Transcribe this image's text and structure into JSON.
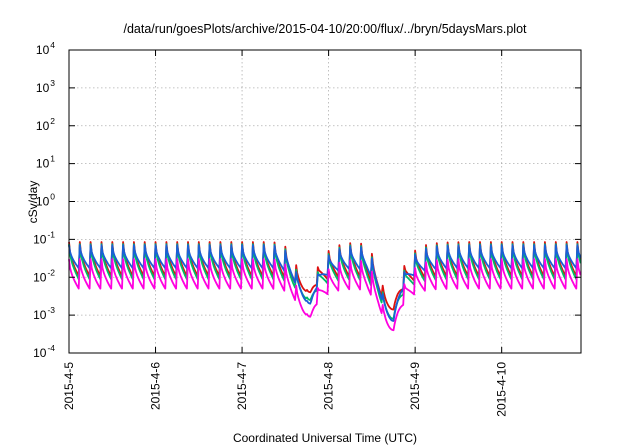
{
  "chart_data": {
    "type": "line",
    "title": "/data/run/goesPlots/archive/2015-04-10/20:00/flux/../bryn/5daysMars.plot",
    "xlabel": "Coordinated Universal Time (UTC)",
    "ylabel": "cSv/day",
    "yscale": "log",
    "ylim": [
      0.0001,
      10000
    ],
    "y_ticks": [
      {
        "exp": "-4"
      },
      {
        "exp": "-3"
      },
      {
        "exp": "-2"
      },
      {
        "exp": "-1"
      },
      {
        "exp": "0"
      },
      {
        "exp": "1"
      },
      {
        "exp": "2"
      },
      {
        "exp": "3"
      },
      {
        "exp": "4"
      }
    ],
    "y_tick_base": "10",
    "xlim": [
      "2015-04-05 00:00",
      "2015-04-10 22:00"
    ],
    "x_ticks": [
      "2015-4-5",
      "2015-4-6",
      "2015-4-7",
      "2015-4-8",
      "2015-4-9",
      "2015-4-10"
    ],
    "grid": true,
    "legend": "none",
    "sawtooth_period_hours": 3,
    "series": [
      {
        "color": "#dd1010",
        "peak": 0.085,
        "trough": 0.0095
      },
      {
        "color": "#00bb66",
        "peak": 0.075,
        "trough": 0.0078
      },
      {
        "color": "#1a5fd6",
        "peak": 0.07,
        "trough": 0.016
      },
      {
        "color": "#ff00e0",
        "peak": 0.03,
        "trough": 0.0045
      }
    ],
    "dips": [
      {
        "time": "2015-04-07 19:00",
        "min": [
          0.004,
          0.0025,
          0.002,
          0.0009
        ]
      },
      {
        "time": "2015-04-08 18:00",
        "min": [
          0.0014,
          0.0008,
          0.0007,
          0.0004
        ]
      }
    ]
  }
}
